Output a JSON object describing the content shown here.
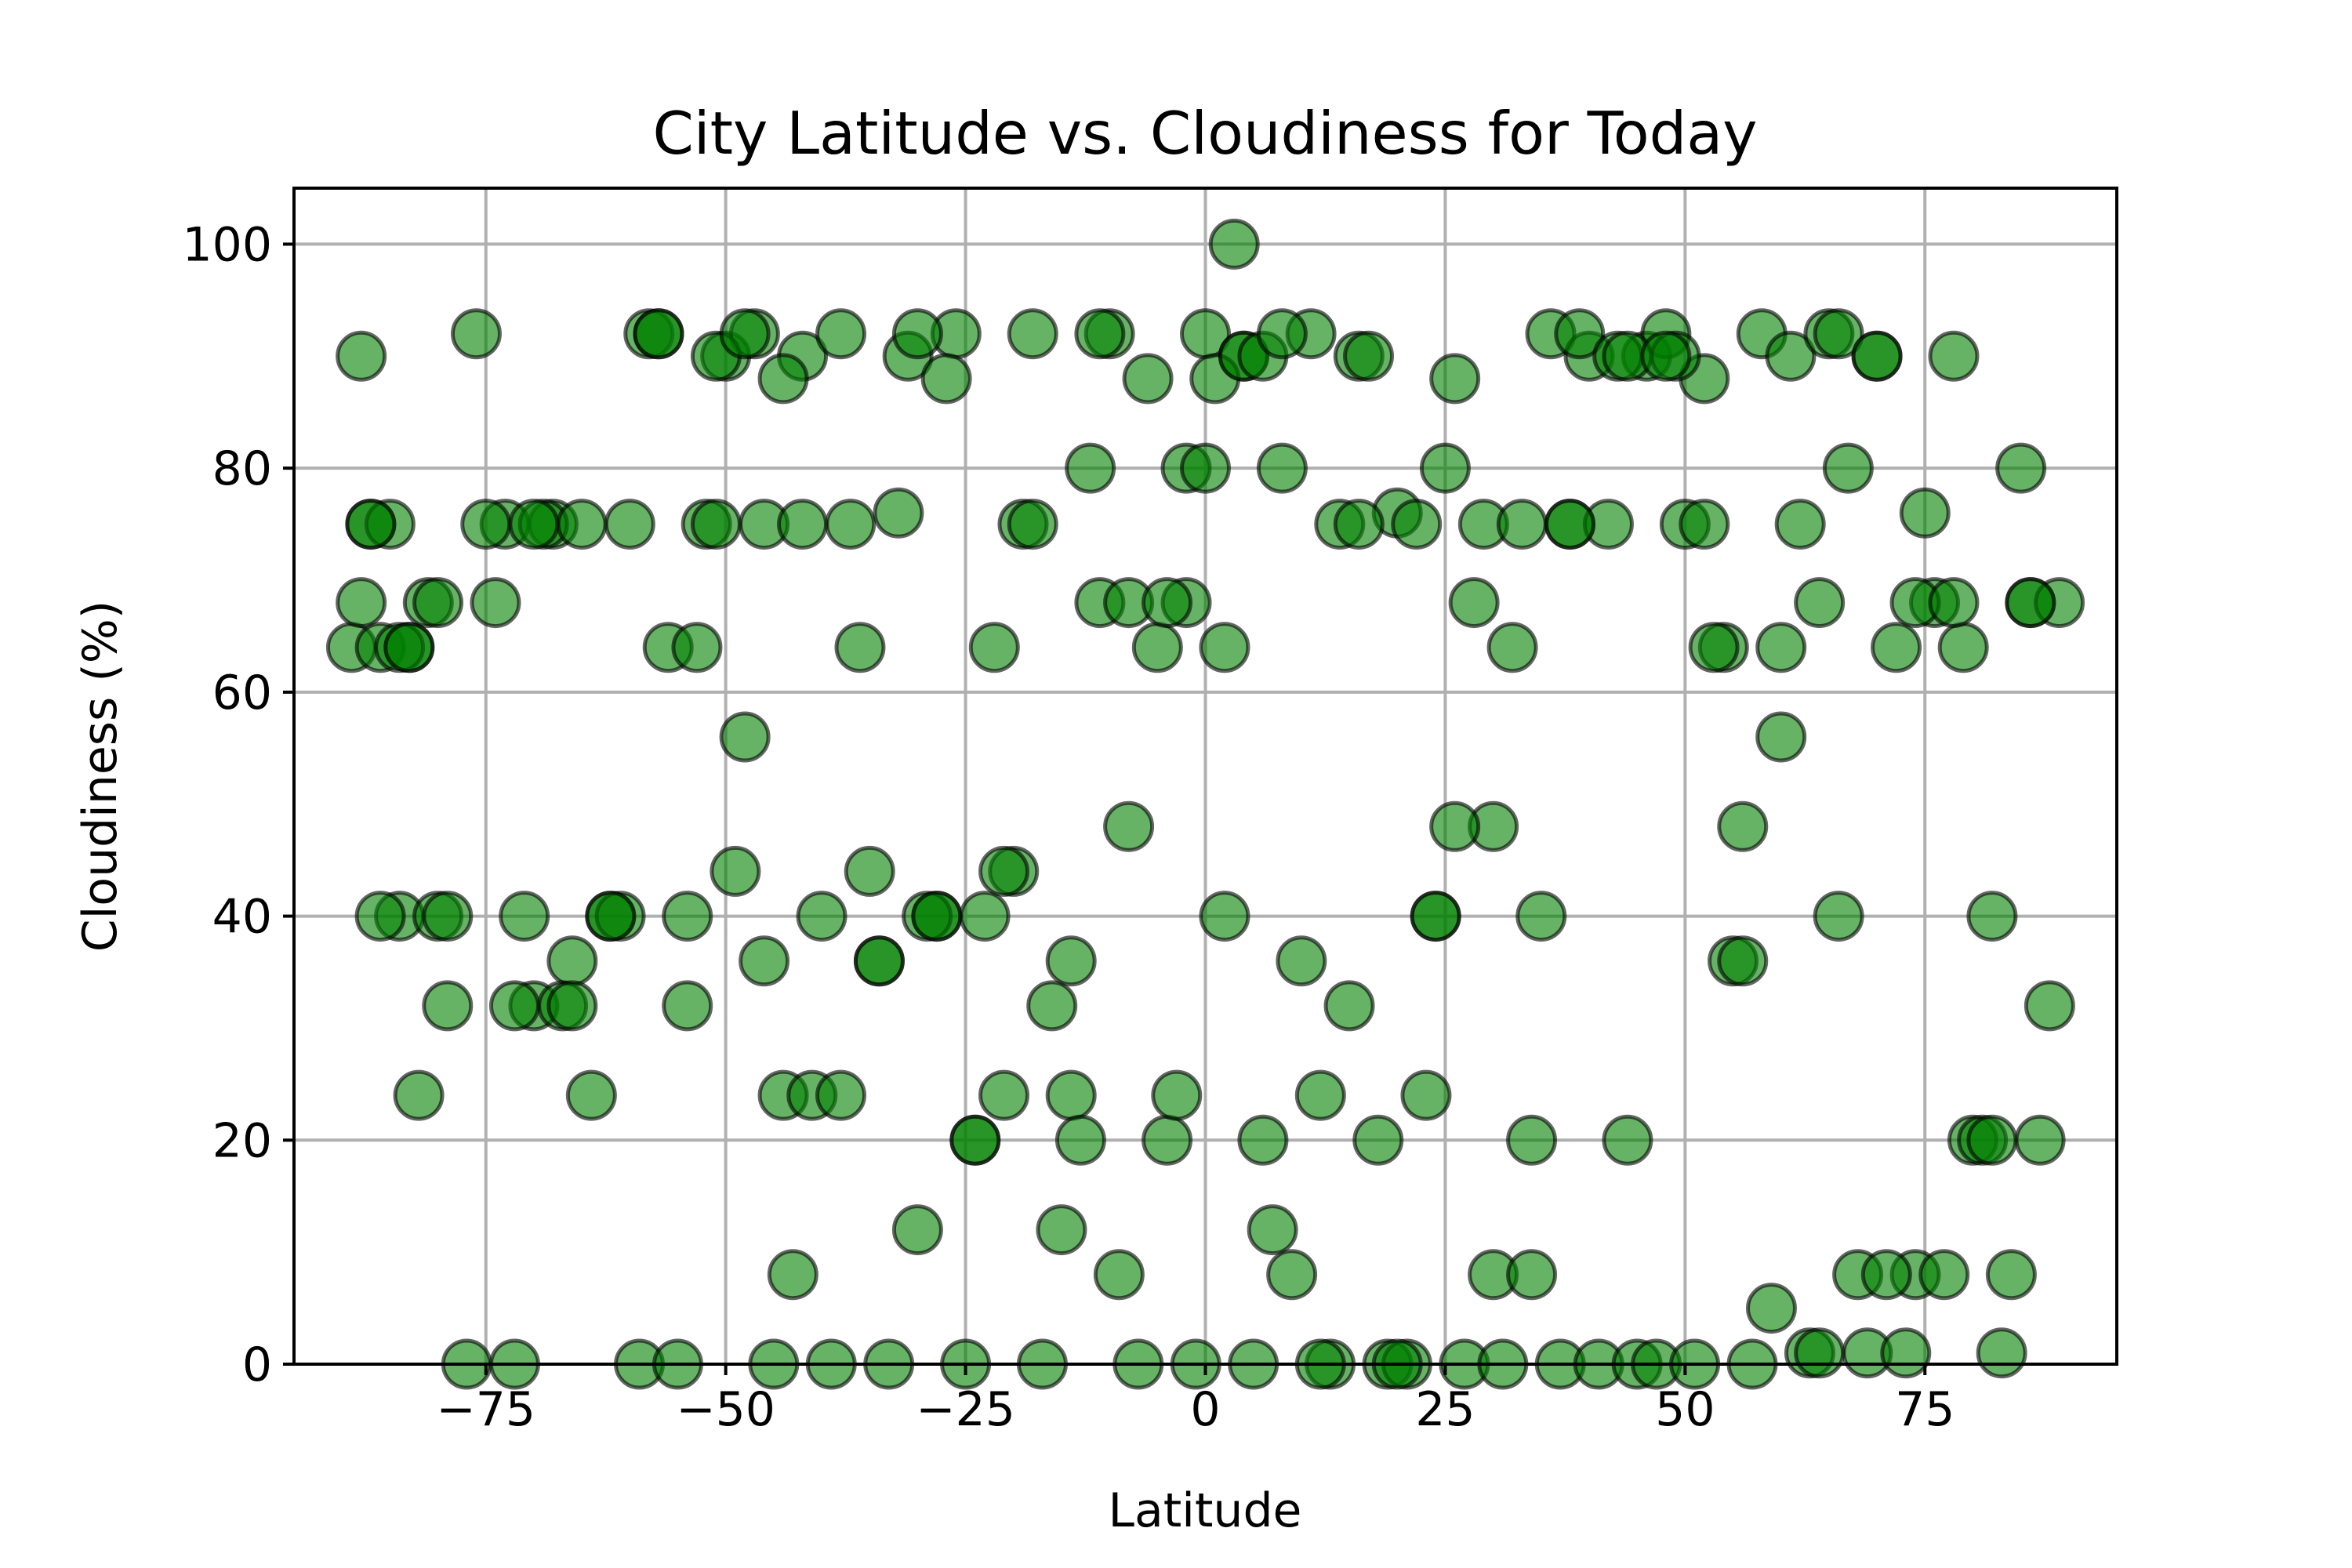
{
  "chart_data": {
    "type": "scatter",
    "title": "City Latitude vs. Cloudiness for Today",
    "xlabel": "Latitude",
    "ylabel": "Cloudiness (%)",
    "xlim": [
      -95,
      95
    ],
    "ylim": [
      0,
      105
    ],
    "xticks": [
      -75,
      -50,
      -25,
      0,
      25,
      50,
      75
    ],
    "xtick_labels": [
      "−75",
      "−50",
      "−25",
      "0",
      "25",
      "50",
      "75"
    ],
    "yticks": [
      0,
      20,
      40,
      60,
      80,
      100
    ],
    "ytick_labels": [
      "0",
      "20",
      "40",
      "60",
      "80",
      "100"
    ],
    "grid": true,
    "marker_color": "#008000",
    "edge_color": "#000000",
    "series": [
      {
        "x": [
          -89,
          -88,
          -87,
          -86,
          -85,
          -84,
          -83,
          -82,
          -81,
          -80,
          -79,
          -76,
          -73,
          -71,
          -70,
          -68,
          -66,
          -64,
          -62,
          -60,
          -58,
          -56,
          -54,
          -52,
          -50,
          -48,
          -46,
          -44,
          -42,
          -40,
          -38,
          -36,
          -34,
          -32,
          -30,
          -28,
          -26,
          -24,
          -22,
          -20,
          -18,
          -16,
          -14,
          -12,
          -10,
          -8,
          -6,
          -4,
          -2,
          0,
          2,
          4,
          6,
          8,
          10,
          12,
          14,
          16,
          18,
          20,
          22,
          24,
          26,
          28,
          30,
          32,
          34,
          36,
          38,
          40,
          42,
          44,
          46,
          48,
          50,
          52,
          54,
          56,
          58,
          60,
          62,
          64,
          66,
          68,
          70,
          72,
          74,
          76,
          78,
          80,
          82,
          84,
          86,
          88,
          89
        ],
        "y": [
          64,
          68,
          75,
          64,
          75,
          40,
          64,
          24,
          68,
          40,
          32,
          92,
          75,
          40,
          32,
          75,
          36,
          24,
          40,
          75,
          92,
          64,
          32,
          75,
          90,
          56,
          75,
          24,
          90,
          40,
          92,
          64,
          36,
          76,
          12,
          40,
          92,
          20,
          64,
          44,
          92,
          32,
          24,
          80,
          92,
          48,
          88,
          20,
          68,
          92,
          40,
          90,
          20,
          80,
          36,
          24,
          75,
          90,
          20,
          76,
          75,
          40,
          88,
          68,
          48,
          64,
          20,
          92,
          75,
          90,
          75,
          20,
          90,
          92,
          75,
          88,
          64,
          48,
          92,
          56,
          75,
          68,
          40,
          8,
          90,
          64,
          8,
          68,
          90,
          20,
          40,
          8,
          68,
          32,
          68
        ]
      },
      {
        "x": [
          -88,
          -86,
          -84,
          -80,
          -77,
          -74,
          -72,
          -69,
          -67,
          -65,
          -61,
          -59,
          -57,
          -55,
          -53,
          -51,
          -49,
          -47,
          -45,
          -43,
          -41,
          -39,
          -37,
          -35,
          -33,
          -31,
          -29,
          -27,
          -25,
          -23,
          -21,
          -19,
          -17,
          -15,
          -13,
          -11,
          -9,
          -7,
          -5,
          -3,
          -1,
          1,
          3,
          5,
          7,
          9,
          11,
          13,
          15,
          17,
          19,
          21,
          23,
          25,
          27,
          29,
          31,
          33,
          35,
          37,
          39,
          41,
          43,
          45,
          47,
          49,
          51,
          53,
          55,
          57,
          59,
          61,
          63,
          65,
          67,
          69,
          71,
          73,
          75,
          77,
          79,
          81,
          83,
          85,
          87
        ],
        "y": [
          90,
          40,
          64,
          68,
          0,
          68,
          0,
          75,
          32,
          75,
          40,
          0,
          92,
          0,
          64,
          75,
          44,
          92,
          0,
          8,
          24,
          0,
          75,
          44,
          0,
          90,
          40,
          88,
          0,
          40,
          24,
          75,
          0,
          12,
          20,
          68,
          8,
          0,
          64,
          24,
          0,
          88,
          100,
          0,
          12,
          8,
          92,
          0,
          32,
          90,
          0,
          0,
          24,
          80,
          0,
          75,
          0,
          75,
          40,
          0,
          92,
          0,
          90,
          0,
          0,
          90,
          0,
          64,
          36,
          0,
          5,
          90,
          1,
          92,
          80,
          1,
          8,
          1,
          76,
          8,
          64,
          20,
          1,
          80,
          20
        ]
      },
      {
        "x": [
          -87,
          -83,
          -79,
          -75,
          -72,
          -70,
          -66,
          -62,
          -57,
          -54,
          -51,
          -48,
          -46,
          -44,
          -42,
          -38,
          -34,
          -30,
          -28,
          -24,
          -21,
          -18,
          -14,
          -11,
          -8,
          -4,
          -2,
          0,
          2,
          4,
          6,
          8,
          12,
          16,
          20,
          24,
          26,
          30,
          34,
          38,
          44,
          48,
          52,
          56,
          60,
          64,
          66,
          70,
          74,
          78,
          82,
          86
        ],
        "y": [
          75,
          64,
          40,
          75,
          32,
          75,
          32,
          40,
          92,
          40,
          90,
          92,
          36,
          88,
          75,
          24,
          36,
          92,
          40,
          20,
          44,
          75,
          36,
          92,
          68,
          68,
          80,
          80,
          64,
          90,
          90,
          92,
          0,
          75,
          0,
          40,
          48,
          8,
          8,
          75,
          90,
          90,
          75,
          36,
          64,
          1,
          92,
          90,
          68,
          68,
          20,
          68
        ]
      }
    ]
  }
}
